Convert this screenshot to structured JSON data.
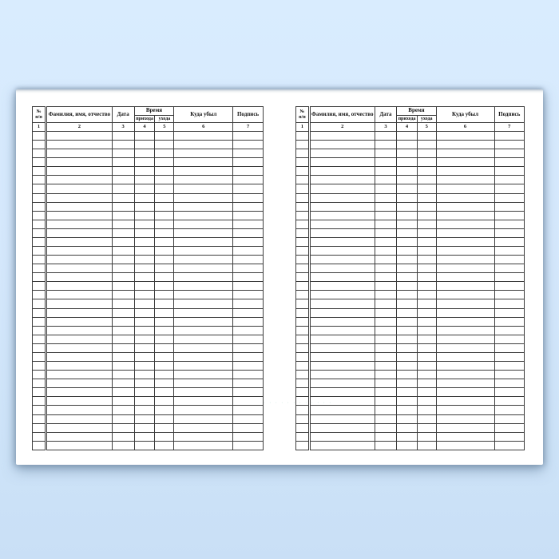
{
  "scene": {
    "description": "Opened blank registration journal spread on light blue background",
    "background_color": "#d6e9fc",
    "page_color": "#ffffff",
    "border_color": "#3c3c3c",
    "watermark": "· · · · · · · · · · · ·"
  },
  "table": {
    "header": {
      "col1_line1": "№",
      "col1_line2": "п/п",
      "col2": "Фамилия, имя, отчество",
      "col3": "Дата",
      "time_group": "Время",
      "time_sub1": "прихода",
      "time_sub2": "ухода",
      "col6": "Куда убыл",
      "col7": "Подпись"
    },
    "number_row": [
      "1",
      "2",
      "3",
      "4",
      "5",
      "6",
      "7"
    ],
    "empty_row_count": 36,
    "columns_count": 7
  },
  "pages": [
    {
      "name": "left-page"
    },
    {
      "name": "right-page"
    }
  ]
}
